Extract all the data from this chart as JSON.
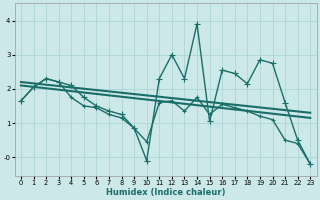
{
  "xlabel": "Humidex (Indice chaleur)",
  "bg_color": "#cce8e8",
  "grid_color": "#b0d8d8",
  "line_color": "#1a6e6a",
  "xlim": [
    -0.5,
    23.5
  ],
  "ylim": [
    -0.55,
    4.5
  ],
  "yticks": [
    0,
    1,
    2,
    3,
    4
  ],
  "ytick_labels": [
    "-0",
    "1",
    "2",
    "3",
    "4"
  ],
  "xticks": [
    0,
    1,
    2,
    3,
    4,
    5,
    6,
    7,
    8,
    9,
    10,
    11,
    12,
    13,
    14,
    15,
    16,
    17,
    18,
    19,
    20,
    21,
    22,
    23
  ],
  "lines": [
    {
      "x": [
        0,
        1,
        2,
        3,
        4,
        5,
        6,
        7,
        8,
        9,
        10,
        11,
        12,
        13,
        14,
        15,
        16,
        17,
        18,
        19,
        20,
        21,
        22,
        23
      ],
      "y": [
        1.65,
        2.05,
        2.3,
        2.2,
        2.1,
        1.75,
        1.5,
        1.35,
        1.25,
        0.85,
        -0.1,
        2.3,
        3.0,
        2.3,
        3.9,
        1.05,
        2.55,
        2.45,
        2.15,
        2.85,
        2.75,
        1.6,
        0.5,
        -0.2
      ],
      "marker": "+",
      "markersize": 4,
      "linewidth": 1.0
    },
    {
      "x": [
        0,
        23
      ],
      "y": [
        2.2,
        1.3
      ],
      "marker": null,
      "markersize": 0,
      "linewidth": 1.5
    },
    {
      "x": [
        0,
        23
      ],
      "y": [
        2.1,
        1.15
      ],
      "marker": null,
      "markersize": 0,
      "linewidth": 1.5
    },
    {
      "x": [
        0,
        1,
        2,
        3,
        4,
        5,
        6,
        7,
        8,
        9,
        10,
        11,
        12,
        13,
        14,
        15,
        16,
        17,
        18,
        19,
        20,
        21,
        22,
        23
      ],
      "y": [
        1.65,
        2.05,
        2.3,
        2.2,
        1.75,
        1.5,
        1.45,
        1.25,
        1.15,
        0.85,
        0.45,
        1.6,
        1.65,
        1.35,
        1.75,
        1.25,
        1.55,
        1.45,
        1.35,
        1.2,
        1.1,
        0.5,
        0.4,
        -0.2
      ],
      "marker": "+",
      "markersize": 3,
      "linewidth": 1.0
    }
  ]
}
